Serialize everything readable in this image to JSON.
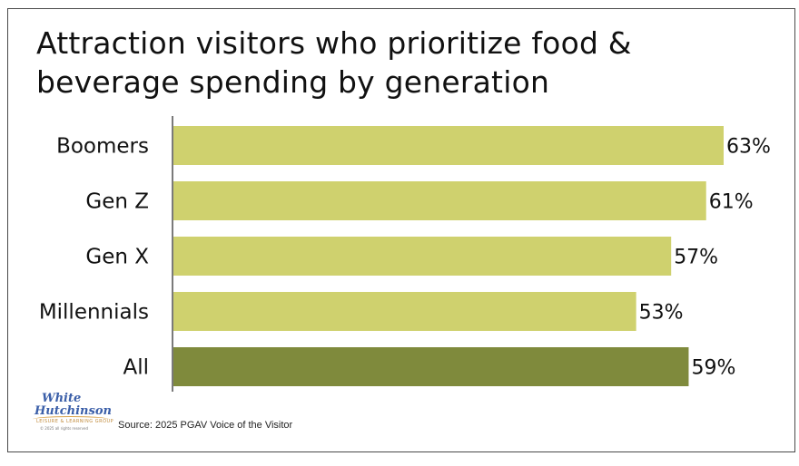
{
  "chart_data": {
    "type": "bar",
    "orientation": "horizontal",
    "title": "Attraction visitors who prioritize food & beverage spending by generation",
    "title_lines": [
      "Attraction visitors who prioritize food &",
      "beverage spending by generation"
    ],
    "categories": [
      "Boomers",
      "Gen Z",
      "Gen X",
      "Millennials",
      "All"
    ],
    "values": [
      63,
      61,
      57,
      53,
      59
    ],
    "value_labels": [
      "63%",
      "61%",
      "57%",
      "53%",
      "59%"
    ],
    "unit": "%",
    "xlim": [
      0,
      63
    ],
    "colors": {
      "bar": "#cfd16e",
      "highlight_bar": "#7f8a3c",
      "highlight_category": "All",
      "axis": "#333333"
    },
    "grid": false,
    "xlabel": "",
    "ylabel": ""
  },
  "source": "Source: 2025 PGAV Voice of the Visitor",
  "logo": {
    "line1": "White",
    "line2": "Hutchinson",
    "tagline": "LEISURE & LEARNING GROUP",
    "copyright": "© 2025 all rights reserved"
  }
}
